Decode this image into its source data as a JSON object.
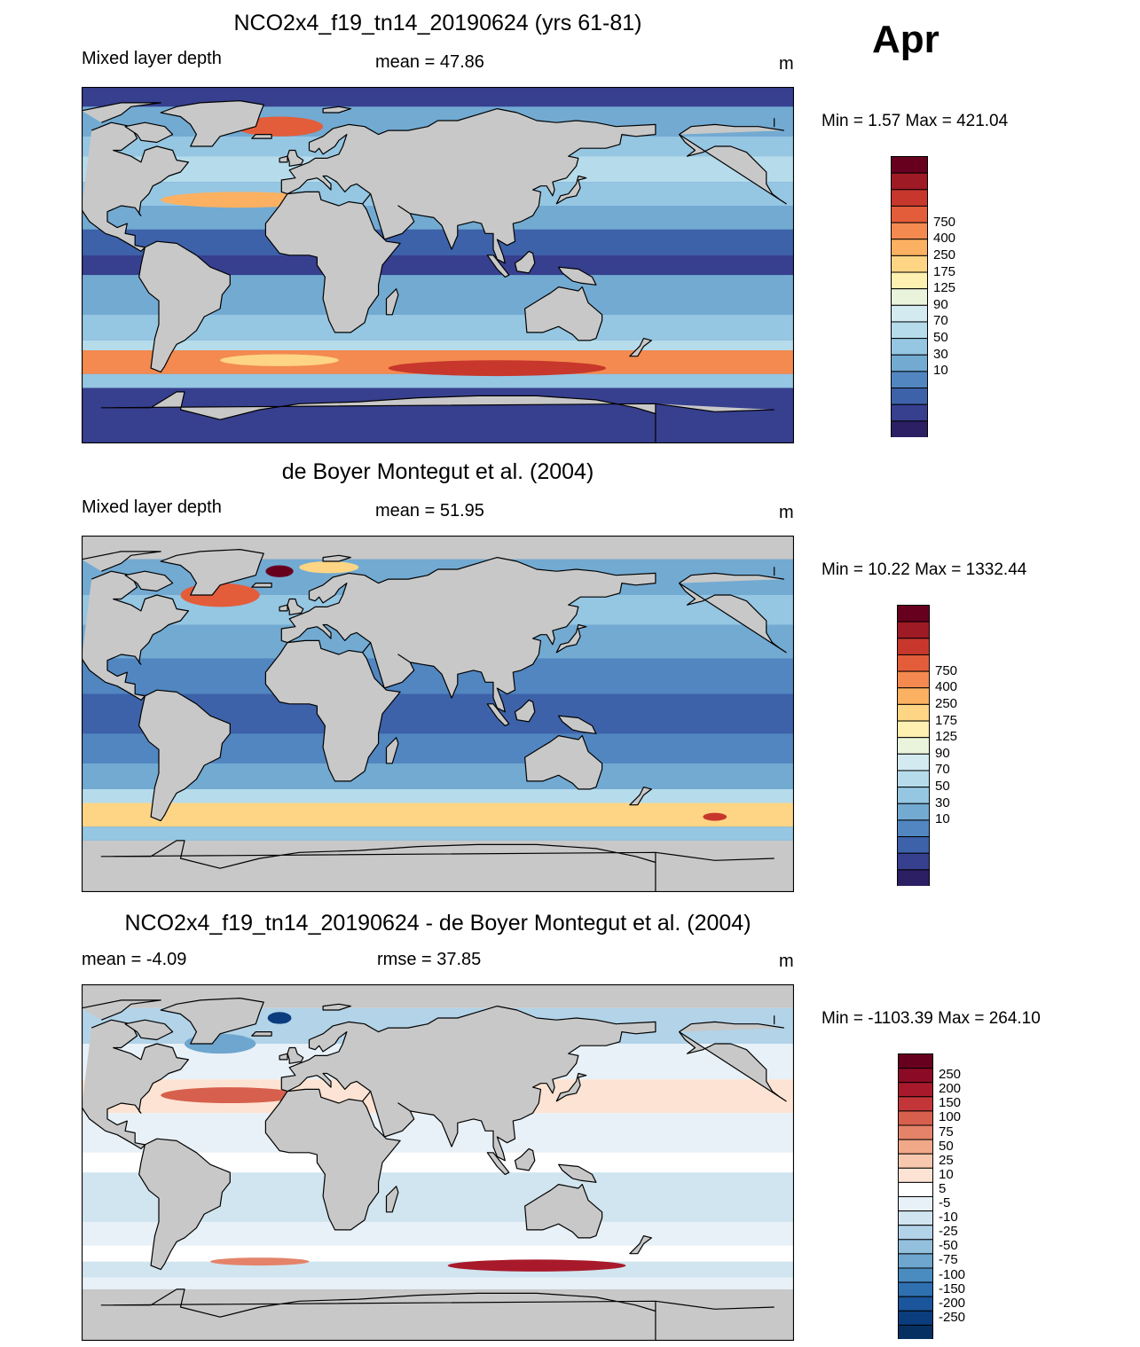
{
  "month": "Apr",
  "colors": {
    "land": "#c8c8c8",
    "coast": "#000000"
  },
  "panels": [
    {
      "title": "NCO2x4_f19_tn14_20190624 (yrs 61-81)",
      "left_label": "Mixed layer depth",
      "center_label": "mean =  47.86",
      "right_label": "m",
      "stats": "Min =   1.57 Max = 421.04",
      "map_type": "model"
    },
    {
      "title": "de Boyer Montegut et al. (2004)",
      "left_label": "Mixed layer depth",
      "center_label": "mean =  51.95",
      "right_label": "m",
      "stats": "Min =  10.22 Max = 1332.44",
      "map_type": "obs"
    },
    {
      "title": "NCO2x4_f19_tn14_20190624 - de Boyer Montegut et al. (2004)",
      "left_label": "mean =  -4.09",
      "center_label": "rmse =  37.85",
      "right_label": "m",
      "stats": "Min = -1103.39 Max = 264.10",
      "map_type": "diff"
    }
  ],
  "colorbars": {
    "mld": {
      "labels": [
        "750",
        "400",
        "250",
        "175",
        "125",
        "90",
        "70",
        "50",
        "30",
        "10"
      ],
      "colors": [
        "#67001f",
        "#9e1a24",
        "#c8372c",
        "#e35d3a",
        "#f48a4f",
        "#fbb161",
        "#fdd585",
        "#fdf0b0",
        "#eaf4dc",
        "#d2eaf0",
        "#b6dceb",
        "#95c6e2",
        "#72aad2",
        "#5186c0",
        "#3d62a9",
        "#373f8f",
        "#2c1f63"
      ]
    },
    "diff": {
      "labels": [
        "250",
        "200",
        "150",
        "100",
        "75",
        "50",
        "25",
        "10",
        "5",
        "-5",
        "-10",
        "-25",
        "-50",
        "-75",
        "-100",
        "-150",
        "-200",
        "-250"
      ],
      "colors": [
        "#67001f",
        "#8b0a25",
        "#a81a2b",
        "#c23639",
        "#d6604d",
        "#e4836a",
        "#f1a889",
        "#f8c8ae",
        "#fde3d3",
        "#ffffff",
        "#e8f1f8",
        "#d1e5f0",
        "#b2d3e8",
        "#92c0dd",
        "#6ea6cf",
        "#4a8bc0",
        "#2f70b0",
        "#1b559c",
        "#0b3d7e",
        "#053061"
      ]
    }
  }
}
